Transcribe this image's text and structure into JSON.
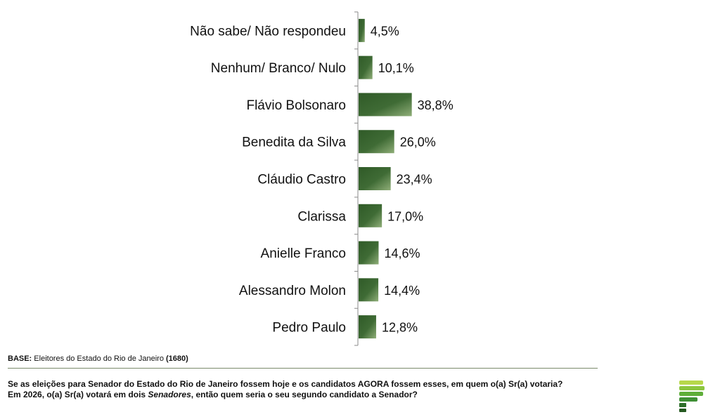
{
  "chart_data": {
    "type": "bar",
    "orientation": "horizontal",
    "categories": [
      "Não sabe/ Não respondeu",
      "Nenhum/ Branco/ Nulo",
      "Flávio Bolsonaro",
      "Benedita da Silva",
      "Cláudio Castro",
      "Clarissa",
      "Anielle Franco",
      "Alessandro Molon",
      "Pedro Paulo"
    ],
    "values": [
      4.5,
      10.1,
      38.8,
      26.0,
      23.4,
      17.0,
      14.6,
      14.4,
      12.8
    ],
    "value_labels": [
      "4,5%",
      "10,1%",
      "38,8%",
      "26,0%",
      "23,4%",
      "17,0%",
      "14,6%",
      "14,4%",
      "12,8%"
    ],
    "title": "",
    "xlabel": "",
    "ylabel": "",
    "xlim": [
      0,
      200
    ],
    "grid": false,
    "bar_color": "#3f6b35"
  },
  "footer": {
    "base_label": "BASE:",
    "base_text": " Eleitores do Estado do Rio de Janeiro ",
    "base_n": "(1680)",
    "question_line1": {
      "p1": "Se as eleições para ",
      "b1": "Senador",
      "p2": " do Estado do Rio de Janeiro fossem hoje e os candidatos AGORA fossem esses, em quem o(a) ",
      "b2": "Sr(a)",
      "p3": " votaria?"
    },
    "question_line2": {
      "p1": "Em 2026, o(a) ",
      "b1": "Sr(a)",
      "p2": " votará em dois ",
      "i1": "Senadores",
      "p3": ", então quem seria o seu segundo candidato a Senador?"
    }
  },
  "colors": {
    "accent": "#3f6b35",
    "rule": "#7a8a6a"
  },
  "logo": {
    "icon": "stacked-bars-p-logo-icon"
  }
}
